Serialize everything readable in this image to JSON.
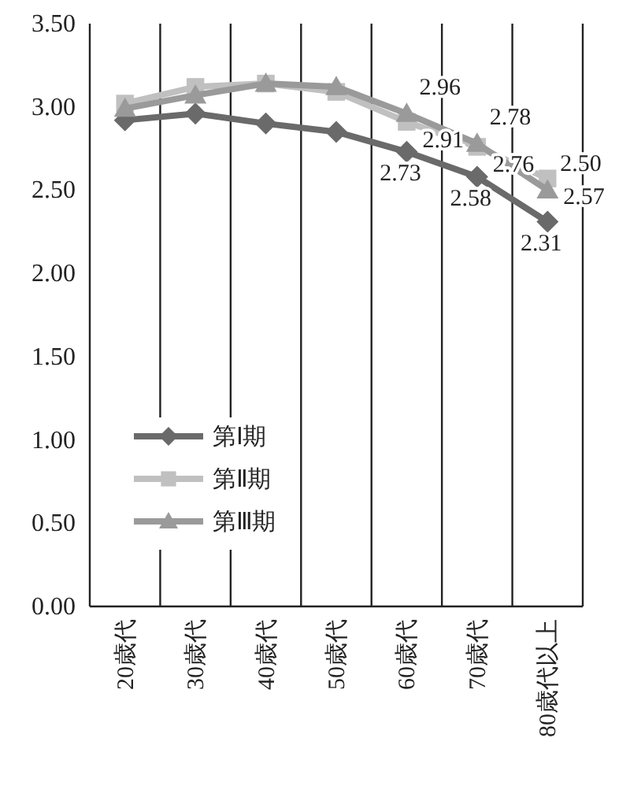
{
  "chart_data": {
    "type": "line",
    "categories": [
      "20歳代",
      "30歳代",
      "40歳代",
      "50歳代",
      "60歳代",
      "70歳代",
      "80歳代以上"
    ],
    "series": [
      {
        "name": "第Ⅰ期",
        "color": "#6a6a6a",
        "marker": "diamond",
        "values": [
          2.92,
          2.96,
          2.9,
          2.85,
          2.73,
          2.58,
          2.31
        ],
        "value_labels": [
          null,
          null,
          null,
          null,
          "2.73",
          "2.58",
          "2.31"
        ]
      },
      {
        "name": "第Ⅱ期",
        "color": "#c0c0c0",
        "marker": "square",
        "values": [
          3.02,
          3.12,
          3.14,
          3.09,
          2.91,
          2.76,
          2.57
        ],
        "value_labels": [
          null,
          null,
          null,
          null,
          "2.91",
          "2.76",
          "2.57"
        ]
      },
      {
        "name": "第Ⅲ期",
        "color": "#9a9a9a",
        "marker": "triangle",
        "values": [
          2.99,
          3.07,
          3.14,
          3.12,
          2.96,
          2.78,
          2.5
        ],
        "value_labels": [
          null,
          null,
          null,
          null,
          "2.96",
          "2.78",
          "2.50"
        ]
      }
    ],
    "ylim": [
      0,
      3.5
    ],
    "yticks": [
      {
        "value": 0,
        "label": "0.00"
      },
      {
        "value": 0.5,
        "label": "0.50"
      },
      {
        "value": 1,
        "label": "1.00"
      },
      {
        "value": 1.5,
        "label": "1.50"
      },
      {
        "value": 2,
        "label": "2.00"
      },
      {
        "value": 2.5,
        "label": "2.50"
      },
      {
        "value": 3,
        "label": "3.00"
      },
      {
        "value": 3.5,
        "label": "3.50"
      }
    ],
    "grid": "x",
    "legend": "bottom left"
  }
}
